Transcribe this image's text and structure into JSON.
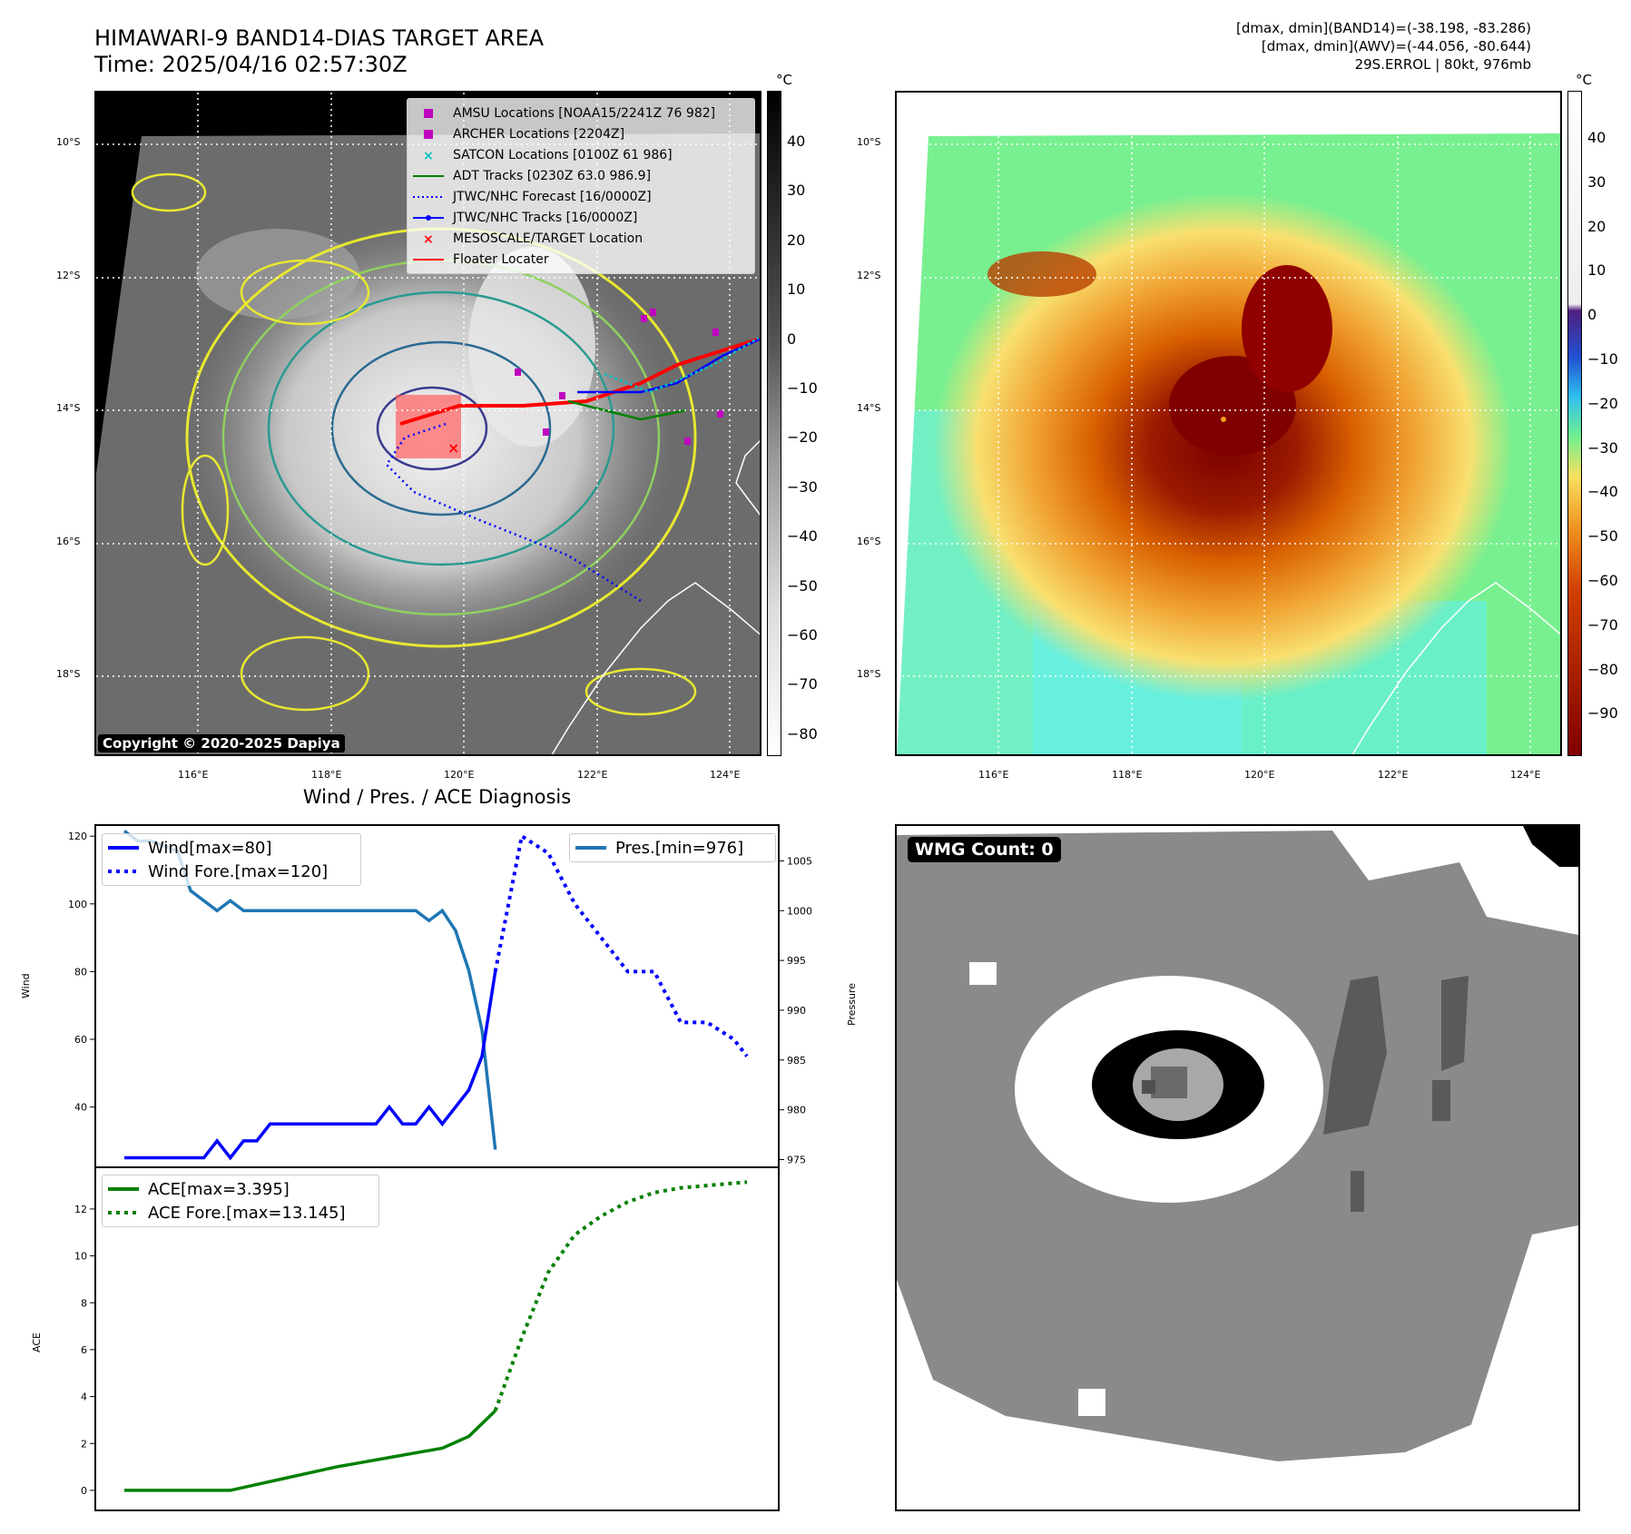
{
  "header": {
    "title_line1": "HIMAWARI-9 BAND14-DIAS TARGET AREA",
    "title_line2": "Time: 2025/04/16 02:57:30Z",
    "info_line1": "[dmax, dmin](BAND14)=(-38.198, -83.286)",
    "info_line2": "[dmax, dmin](AWV)=(-44.056, -80.644)",
    "info_line3": "29S.ERROL | 80kt, 976mb"
  },
  "map": {
    "lat_labels": [
      "10°S",
      "12°S",
      "14°S",
      "16°S",
      "18°S"
    ],
    "lon_labels": [
      "116°E",
      "118°E",
      "120°E",
      "122°E",
      "124°E"
    ],
    "copyright": "Copyright © 2020-2025 Dapiya",
    "legend": [
      {
        "label": "AMSU Locations [NOAA15/2241Z 76 982]",
        "color": "#c000c0",
        "marker": "square"
      },
      {
        "label": "ARCHER Locations [2204Z]",
        "color": "#c000c0",
        "marker": "square"
      },
      {
        "label": "SATCON Locations [0100Z 61 986]",
        "color": "#00bfbf",
        "marker": "x"
      },
      {
        "label": "ADT Tracks [0230Z 63.0 986.9]",
        "color": "#008000",
        "marker": "line"
      },
      {
        "label": "JTWC/NHC Forecast [16/0000Z]",
        "color": "#0000ff",
        "marker": "dotted"
      },
      {
        "label": "JTWC/NHC Tracks [16/0000Z]",
        "color": "#0000ff",
        "marker": "line-dot"
      },
      {
        "label": "MESOSCALE/TARGET Location",
        "color": "#ff0000",
        "marker": "x"
      },
      {
        "label": "Floater Locater",
        "color": "#ff0000",
        "marker": "line"
      }
    ]
  },
  "colorbar_gray": {
    "unit": "°C",
    "ticks": [
      "40",
      "30",
      "20",
      "10",
      "0",
      "−10",
      "−20",
      "−30",
      "−40",
      "−50",
      "−60",
      "−70",
      "−80"
    ]
  },
  "colorbar_color": {
    "unit": "°C",
    "ticks": [
      "40",
      "30",
      "20",
      "10",
      "0",
      "−10",
      "−20",
      "−30",
      "−40",
      "−50",
      "−60",
      "−70",
      "−80",
      "−90"
    ]
  },
  "diagnosis": {
    "title": "Wind / Pres. / ACE Diagnosis",
    "wind_ylabel": "Wind",
    "pressure_ylabel": "Pressure",
    "ace_ylabel": "ACE",
    "wind_yticks": [
      "120",
      "100",
      "80",
      "60",
      "40"
    ],
    "pres_yticks": [
      "1005",
      "1000",
      "995",
      "990",
      "985",
      "980",
      "975"
    ],
    "ace_yticks": [
      "12",
      "10",
      "8",
      "6",
      "4",
      "2",
      "0"
    ],
    "legend_wind": "Wind[max=80]",
    "legend_wind_fore": "Wind Fore.[max=120]",
    "legend_pres": "Pres.[min=976]",
    "legend_ace": "ACE[max=3.395]",
    "legend_ace_fore": "ACE Fore.[max=13.145]"
  },
  "wmg": {
    "label": "WMG Count: 0"
  },
  "chart_data": [
    {
      "type": "line",
      "title": "Wind / Pres. / ACE Diagnosis",
      "ylabel": "Wind",
      "ylim": [
        23,
        123
      ],
      "x": [
        0,
        1,
        2,
        3,
        4,
        5,
        6,
        7,
        8,
        9,
        10,
        11,
        12,
        13,
        14,
        15,
        16,
        17,
        18,
        19,
        20,
        21,
        22,
        23,
        24,
        25,
        26,
        27,
        28,
        29,
        30,
        31,
        32,
        33,
        34,
        35,
        36,
        37,
        38,
        39,
        40,
        41,
        42,
        43,
        44,
        45,
        46,
        47
      ],
      "series": [
        {
          "name": "Wind[max=80]",
          "style": "solid",
          "color": "#0000ff",
          "x": [
            0,
            1,
            2,
            3,
            4,
            5,
            6,
            7,
            8,
            9,
            10,
            11,
            12,
            13,
            14,
            15,
            16,
            17,
            18,
            19,
            20,
            21,
            22,
            23,
            24,
            25,
            26,
            27,
            28
          ],
          "values": [
            25,
            25,
            25,
            25,
            25,
            25,
            25,
            30,
            25,
            30,
            30,
            35,
            35,
            35,
            35,
            35,
            35,
            35,
            35,
            35,
            40,
            35,
            35,
            40,
            35,
            40,
            45,
            55,
            80
          ]
        },
        {
          "name": "Wind Fore.[max=120]",
          "style": "dotted",
          "color": "#0000ff",
          "x": [
            28,
            30,
            32,
            34,
            36,
            38,
            40,
            42,
            44,
            46,
            47
          ],
          "values": [
            80,
            120,
            115,
            100,
            90,
            80,
            80,
            65,
            65,
            60,
            55
          ]
        }
      ]
    },
    {
      "type": "line",
      "ylabel": "Pressure",
      "ylim": [
        974.5,
        1008.5
      ],
      "series": [
        {
          "name": "Pres.[min=976]",
          "style": "solid",
          "color": "#1f77b4",
          "x": [
            0,
            1,
            2,
            3,
            4,
            5,
            6,
            7,
            8,
            9,
            10,
            11,
            12,
            13,
            14,
            15,
            16,
            17,
            18,
            19,
            20,
            21,
            22,
            23,
            24,
            25,
            26,
            27,
            28
          ],
          "values": [
            1008,
            1007,
            1007,
            1006.5,
            1006,
            1002,
            1001,
            1000,
            1001,
            1000,
            1000,
            1000,
            1000,
            1000,
            1000,
            1000,
            1000,
            1000,
            1000,
            1000,
            1000,
            1000,
            1000,
            999,
            1000,
            998,
            994,
            988,
            976
          ]
        }
      ]
    },
    {
      "type": "line",
      "ylabel": "ACE",
      "ylim": [
        -0.7,
        13.7
      ],
      "series": [
        {
          "name": "ACE[max=3.395]",
          "style": "solid",
          "color": "#008000",
          "x": [
            0,
            2,
            4,
            6,
            8,
            10,
            12,
            14,
            16,
            18,
            20,
            22,
            24,
            26,
            28
          ],
          "values": [
            0,
            0,
            0,
            0,
            0,
            0.25,
            0.5,
            0.75,
            1.0,
            1.2,
            1.4,
            1.6,
            1.8,
            2.3,
            3.395
          ]
        },
        {
          "name": "ACE Fore.[max=13.145]",
          "style": "dotted",
          "color": "#008000",
          "x": [
            28,
            30,
            32,
            34,
            36,
            38,
            40,
            42,
            44,
            46,
            47
          ],
          "values": [
            3.395,
            6.5,
            9.3,
            10.9,
            11.7,
            12.3,
            12.7,
            12.9,
            13.0,
            13.1,
            13.145
          ]
        }
      ]
    }
  ]
}
